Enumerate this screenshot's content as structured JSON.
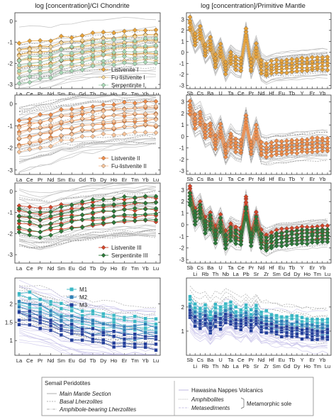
{
  "header": {
    "left_title": "log [concentration]/CI Chondrite",
    "right_title": "log [concentration]/Primitive Mantle"
  },
  "colors": {
    "listvenite1": "#e8a33a",
    "fu_listvenite1": "#f6d79a",
    "serpentinite1": "#a9d8b6",
    "listvenite2": "#f08d4a",
    "fu_listvenite2": "#f8c49a",
    "listvenite3": "#d5472b",
    "serpentinite3": "#2d7a3a",
    "m1": "#3ab7c4",
    "m2": "#2e7fb5",
    "m3": "#223d99",
    "gray": "#bdbdbd",
    "gray_dark": "#7a7a7a"
  },
  "ree_elements": [
    "La",
    "Ce",
    "Pr",
    "Nd",
    "Sm",
    "Eu",
    "Gd",
    "Tb",
    "Dy",
    "Ho",
    "Er",
    "Tm",
    "Yb",
    "Lu"
  ],
  "pm_elements_top": [
    "Sb",
    "Cs",
    "Ba",
    "U",
    "Ta",
    "Ce",
    "Pr",
    "Nd",
    "Hf",
    "Eu",
    "Tb",
    "Y",
    "Er",
    "Yb"
  ],
  "pm_elements_bottom": [
    "Li",
    "Rb",
    "Th",
    "Nb",
    "La",
    "Pb",
    "Sr",
    "Zr",
    "Sm",
    "Gd",
    "Dy",
    "Ho",
    "Tm",
    "Lu"
  ],
  "legend": {
    "group_title": "Semail Peridotites",
    "peridotites": [
      "Main Mantle Section",
      "Basal Lherzolites",
      "Amphibole-bearing Lherzolites"
    ],
    "hawasina": "Hawasina Nappes Volcanics",
    "amphibolites": "Amphibolites",
    "metasediments": "Metasediments",
    "metamorphic_sole": "Metamorphic sole"
  },
  "chart_data": [
    {
      "type": "line",
      "panel": "REE row 1",
      "x": [
        "La",
        "Ce",
        "Pr",
        "Nd",
        "Sm",
        "Eu",
        "Gd",
        "Tb",
        "Dy",
        "Ho",
        "Er",
        "Tm",
        "Yb",
        "Lu"
      ],
      "ylim": [
        -3.2,
        0.4
      ],
      "yticks": [
        0,
        -1,
        -2,
        -3
      ],
      "series": [
        {
          "name": "Listvenite I",
          "values": [
            -1.6,
            -1.5,
            -1.5,
            -1.45,
            -1.3,
            -1.3,
            -1.2,
            -1.15,
            -1.1,
            -1.05,
            -1.0,
            -1.0,
            -0.95,
            -0.95
          ]
        },
        {
          "name": "Fu-listvenite I",
          "values": [
            -1.9,
            -1.85,
            -1.8,
            -1.75,
            -1.6,
            -1.55,
            -1.5,
            -1.45,
            -1.4,
            -1.35,
            -1.3,
            -1.3,
            -1.25,
            -1.25
          ]
        },
        {
          "name": "Serpentinite I",
          "values": [
            -2.4,
            -2.3,
            -2.2,
            -2.1,
            -1.9,
            -1.8,
            -1.7,
            -1.6,
            -1.55,
            -1.5,
            -1.45,
            -1.45,
            -1.4,
            -1.4
          ]
        }
      ]
    },
    {
      "type": "line",
      "panel": "REE row 2",
      "x": [
        "La",
        "Ce",
        "Pr",
        "Nd",
        "Sm",
        "Eu",
        "Gd",
        "Tb",
        "Dy",
        "Ho",
        "Er",
        "Tm",
        "Yb",
        "Lu"
      ],
      "ylim": [
        -3.2,
        0.4
      ],
      "yticks": [
        0,
        -1,
        -2,
        -3
      ],
      "series": [
        {
          "name": "Listvenite II",
          "values": [
            -1.3,
            -1.2,
            -1.1,
            -1.0,
            -0.85,
            -0.8,
            -0.7,
            -0.65,
            -0.6,
            -0.55,
            -0.5,
            -0.5,
            -0.45,
            -0.45
          ]
        },
        {
          "name": "Fu-listvenite II",
          "values": [
            -1.6,
            -1.5,
            -1.4,
            -1.3,
            -1.1,
            -1.05,
            -0.95,
            -0.9,
            -0.85,
            -0.8,
            -0.75,
            -0.75,
            -0.7,
            -0.7
          ]
        }
      ]
    },
    {
      "type": "line",
      "panel": "REE row 3",
      "x": [
        "La",
        "Ce",
        "Pr",
        "Nd",
        "Sm",
        "Eu",
        "Gd",
        "Tb",
        "Dy",
        "Ho",
        "Er",
        "Tm",
        "Yb",
        "Lu"
      ],
      "ylim": [
        -3.4,
        0.4
      ],
      "yticks": [
        0,
        -1,
        -2,
        -3
      ],
      "series": [
        {
          "name": "Listvenite III",
          "values": [
            -1.2,
            -1.3,
            -1.35,
            -1.3,
            -1.2,
            -1.15,
            -1.1,
            -1.05,
            -1.0,
            -0.95,
            -0.9,
            -0.9,
            -0.85,
            -0.85
          ]
        },
        {
          "name": "Serpentinite III",
          "values": [
            -1.4,
            -1.5,
            -1.6,
            -1.5,
            -1.3,
            -1.2,
            -1.1,
            -1.0,
            -0.95,
            -0.9,
            -0.85,
            -0.85,
            -0.8,
            -0.8
          ]
        }
      ]
    },
    {
      "type": "line",
      "panel": "REE row 4",
      "x": [
        "La",
        "Ce",
        "Pr",
        "Nd",
        "Sm",
        "Eu",
        "Gd",
        "Tb",
        "Dy",
        "Ho",
        "Er",
        "Tm",
        "Yb",
        "Lu"
      ],
      "ylim": [
        0.6,
        2.7
      ],
      "yticks": [
        1,
        1.5,
        2
      ],
      "series": [
        {
          "name": "M1",
          "values": [
            2.15,
            2.08,
            2.0,
            1.92,
            1.78,
            1.72,
            1.67,
            1.62,
            1.57,
            1.53,
            1.49,
            1.47,
            1.45,
            1.43
          ]
        },
        {
          "name": "M2",
          "values": [
            1.9,
            1.82,
            1.75,
            1.67,
            1.53,
            1.47,
            1.42,
            1.37,
            1.33,
            1.29,
            1.25,
            1.23,
            1.21,
            1.19
          ]
        },
        {
          "name": "M3",
          "values": [
            1.65,
            1.57,
            1.5,
            1.42,
            1.28,
            1.22,
            1.17,
            1.12,
            1.08,
            1.04,
            1.0,
            0.98,
            0.96,
            0.94
          ]
        }
      ]
    },
    {
      "type": "line",
      "panel": "PM row 1",
      "x": [
        "Sb",
        "Li",
        "Cs",
        "Rb",
        "Ba",
        "Th",
        "U",
        "Nb",
        "Ta",
        "La",
        "Ce",
        "Pb",
        "Pr",
        "Sr",
        "Nd",
        "Zr",
        "Hf",
        "Sm",
        "Eu",
        "Gd",
        "Tb",
        "Dy",
        "Y",
        "Ho",
        "Er",
        "Tm",
        "Yb",
        "Lu"
      ],
      "ylim": [
        -3.3,
        3.6
      ],
      "yticks": [
        3,
        2,
        1,
        0,
        -1,
        -2,
        -3
      ],
      "series": [
        {
          "name": "Listvenite I",
          "values": [
            2.6,
            1.2,
            1.8,
            0.2,
            0.8,
            -0.8,
            0.2,
            -1.4,
            -0.5,
            -1.0,
            -1.1,
            1.6,
            -1.2,
            0.2,
            -1.3,
            -1.6,
            -1.4,
            -1.3,
            -1.3,
            -1.25,
            -1.2,
            -1.15,
            -1.1,
            -1.1,
            -1.05,
            -1.0,
            -1.0,
            -1.0
          ]
        }
      ]
    },
    {
      "type": "line",
      "panel": "PM row 2",
      "x": [
        "Sb",
        "Li",
        "Cs",
        "Rb",
        "Ba",
        "Th",
        "U",
        "Nb",
        "Ta",
        "La",
        "Ce",
        "Pb",
        "Pr",
        "Sr",
        "Nd",
        "Zr",
        "Hf",
        "Sm",
        "Eu",
        "Gd",
        "Tb",
        "Dy",
        "Y",
        "Ho",
        "Er",
        "Tm",
        "Yb",
        "Lu"
      ],
      "ylim": [
        -3.3,
        3.6
      ],
      "yticks": [
        3,
        2,
        1,
        0,
        -1,
        -2,
        -3
      ],
      "series": [
        {
          "name": "Listvenite II",
          "values": [
            2.5,
            1.3,
            1.6,
            0.4,
            0.6,
            -0.5,
            0.5,
            -1.2,
            -0.3,
            -0.8,
            -0.9,
            1.3,
            -1.0,
            0.4,
            -1.1,
            -1.2,
            -1.1,
            -1.0,
            -1.0,
            -0.95,
            -0.9,
            -0.85,
            -0.8,
            -0.8,
            -0.75,
            -0.7,
            -0.7,
            -0.7
          ]
        }
      ]
    },
    {
      "type": "line",
      "panel": "PM row 3",
      "x": [
        "Sb",
        "Li",
        "Cs",
        "Rb",
        "Ba",
        "Th",
        "U",
        "Nb",
        "Ta",
        "La",
        "Ce",
        "Pb",
        "Pr",
        "Sr",
        "Nd",
        "Zr",
        "Hf",
        "Sm",
        "Eu",
        "Gd",
        "Tb",
        "Dy",
        "Y",
        "Ho",
        "Er",
        "Tm",
        "Yb",
        "Lu"
      ],
      "ylim": [
        -3.3,
        3.6
      ],
      "yticks": [
        3,
        2,
        1,
        0,
        -1,
        -2,
        -3
      ],
      "series": [
        {
          "name": "Listvenite III",
          "values": [
            2.8,
            0.9,
            1.5,
            0.1,
            0.5,
            -0.6,
            0.3,
            -1.1,
            -0.4,
            -0.7,
            -0.8,
            1.9,
            -0.9,
            0.5,
            -1.0,
            -1.4,
            -1.2,
            -1.0,
            -0.95,
            -0.9,
            -0.85,
            -0.8,
            -0.75,
            -0.75,
            -0.7,
            -0.7,
            -0.65,
            -0.65
          ]
        },
        {
          "name": "Serpentinite III",
          "values": [
            2.2,
            0.6,
            1.2,
            -0.2,
            0.2,
            -1.0,
            0.0,
            -1.5,
            -0.8,
            -1.1,
            -1.2,
            1.0,
            -1.3,
            0.1,
            -1.4,
            -1.7,
            -1.5,
            -1.3,
            -1.25,
            -1.2,
            -1.15,
            -1.1,
            -1.05,
            -1.05,
            -1.0,
            -1.0,
            -0.95,
            -0.95
          ]
        }
      ]
    },
    {
      "type": "line",
      "panel": "PM row 4",
      "x": [
        "Sb",
        "Li",
        "Cs",
        "Rb",
        "Ba",
        "Th",
        "U",
        "Nb",
        "Ta",
        "La",
        "Ce",
        "Pb",
        "Pr",
        "Sr",
        "Nd",
        "Zr",
        "Hf",
        "Sm",
        "Eu",
        "Gd",
        "Tb",
        "Dy",
        "Y",
        "Ho",
        "Er",
        "Tm",
        "Yb",
        "Lu"
      ],
      "ylim": [
        0.0,
        3.2
      ],
      "yticks": [
        2,
        1
      ],
      "series": [
        {
          "name": "M1",
          "values": [
            2.2,
            1.9,
            1.8,
            1.9,
            1.6,
            1.9,
            1.8,
            2.0,
            2.0,
            1.8,
            1.7,
            1.9,
            1.65,
            1.9,
            1.6,
            1.6,
            1.55,
            1.5,
            1.45,
            1.45,
            1.4,
            1.4,
            1.35,
            1.35,
            1.3,
            1.3,
            1.3,
            1.3
          ]
        },
        {
          "name": "M2",
          "values": [
            1.9,
            1.6,
            1.5,
            1.6,
            1.3,
            1.6,
            1.5,
            1.7,
            1.7,
            1.5,
            1.45,
            1.6,
            1.4,
            1.6,
            1.35,
            1.35,
            1.3,
            1.25,
            1.2,
            1.2,
            1.15,
            1.15,
            1.1,
            1.1,
            1.05,
            1.05,
            1.05,
            1.05
          ]
        },
        {
          "name": "M3",
          "values": [
            1.7,
            1.4,
            1.3,
            1.4,
            1.1,
            1.4,
            1.3,
            1.5,
            1.5,
            1.3,
            1.25,
            1.4,
            1.2,
            1.4,
            1.15,
            1.15,
            1.1,
            1.05,
            1.0,
            1.0,
            0.95,
            0.95,
            0.9,
            0.9,
            0.85,
            0.85,
            0.85,
            0.85
          ]
        }
      ]
    }
  ]
}
